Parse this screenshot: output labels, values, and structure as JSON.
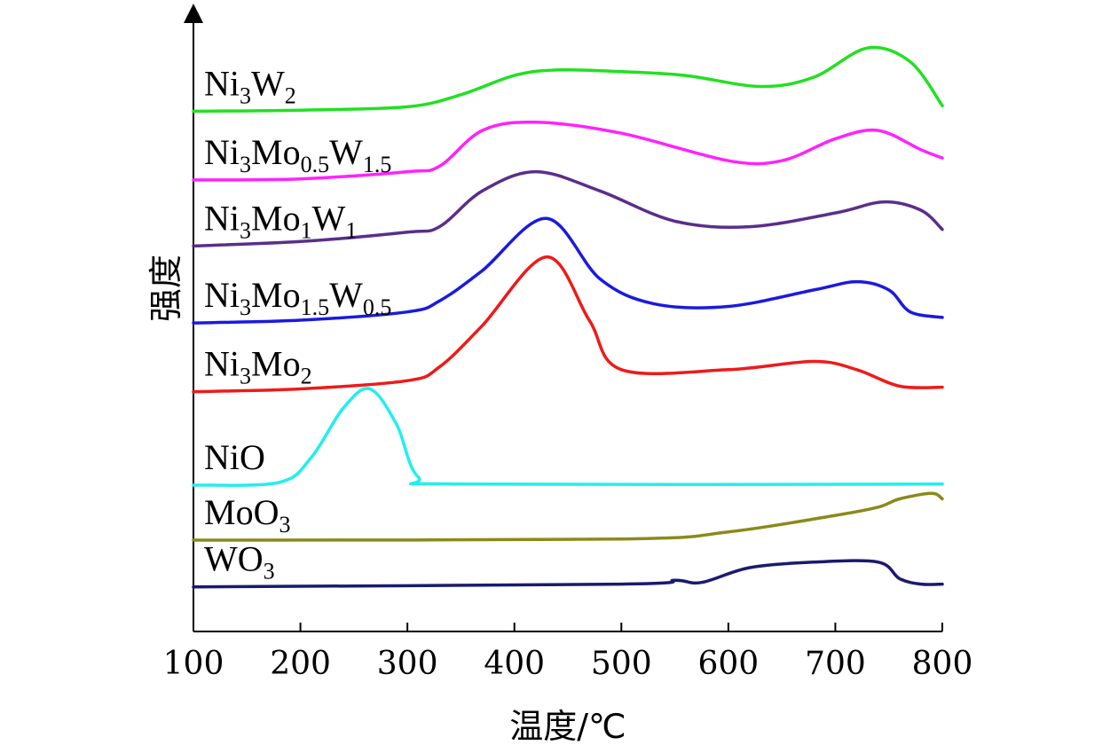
{
  "chart_data": {
    "type": "line",
    "xlabel": "温度/℃",
    "ylabel": "强度",
    "xlim": [
      100,
      800
    ],
    "xticks": [
      100,
      200,
      300,
      400,
      500,
      600,
      700,
      800
    ],
    "yticks_shown": false,
    "legend": "inline labels beside each curve",
    "series": [
      {
        "name": "Ni3W2",
        "label_parts": [
          [
            "Ni",
            ""
          ],
          [
            "3",
            "sub"
          ],
          [
            "W",
            ""
          ],
          [
            "2",
            "sub"
          ]
        ],
        "color": "#22e022",
        "offset": 7.8,
        "points": [
          [
            100,
            0
          ],
          [
            200,
            0.02
          ],
          [
            300,
            0.08
          ],
          [
            350,
            0.3
          ],
          [
            400,
            0.65
          ],
          [
            440,
            0.75
          ],
          [
            500,
            0.72
          ],
          [
            560,
            0.65
          ],
          [
            630,
            0.45
          ],
          [
            680,
            0.62
          ],
          [
            730,
            1.15
          ],
          [
            770,
            0.9
          ],
          [
            800,
            0.1
          ]
        ]
      },
      {
        "name": "Ni3Mo0.5W1.5",
        "label_parts": [
          [
            "Ni",
            ""
          ],
          [
            "3",
            "sub"
          ],
          [
            "Mo",
            ""
          ],
          [
            "0.5",
            "sub"
          ],
          [
            "W",
            ""
          ],
          [
            "1.5",
            "sub"
          ]
        ],
        "color": "#ff22ff",
        "offset": 6.55,
        "points": [
          [
            100,
            0
          ],
          [
            200,
            0.02
          ],
          [
            300,
            0.15
          ],
          [
            330,
            0.25
          ],
          [
            370,
            0.9
          ],
          [
            420,
            1.05
          ],
          [
            500,
            0.85
          ],
          [
            600,
            0.35
          ],
          [
            650,
            0.35
          ],
          [
            700,
            0.75
          ],
          [
            740,
            0.9
          ],
          [
            780,
            0.55
          ],
          [
            800,
            0.4
          ]
        ]
      },
      {
        "name": "Ni3Mo1W1",
        "label_parts": [
          [
            "Ni",
            ""
          ],
          [
            "3",
            "sub"
          ],
          [
            "Mo",
            ""
          ],
          [
            "1",
            "sub"
          ],
          [
            "W",
            ""
          ],
          [
            "1",
            "sub"
          ]
        ],
        "color": "#5a2e8a",
        "offset": 5.35,
        "points": [
          [
            100,
            0
          ],
          [
            200,
            0.08
          ],
          [
            300,
            0.25
          ],
          [
            330,
            0.35
          ],
          [
            370,
            1.0
          ],
          [
            420,
            1.35
          ],
          [
            480,
            1.0
          ],
          [
            550,
            0.45
          ],
          [
            620,
            0.35
          ],
          [
            700,
            0.6
          ],
          [
            745,
            0.8
          ],
          [
            780,
            0.65
          ],
          [
            800,
            0.3
          ]
        ]
      },
      {
        "name": "Ni3Mo1.5W0.5",
        "label_parts": [
          [
            "Ni",
            ""
          ],
          [
            "3",
            "sub"
          ],
          [
            "Mo",
            ""
          ],
          [
            "1.5",
            "sub"
          ],
          [
            "W",
            ""
          ],
          [
            "0.5",
            "sub"
          ]
        ],
        "color": "#1a1adf",
        "offset": 3.95,
        "points": [
          [
            100,
            0
          ],
          [
            200,
            0.05
          ],
          [
            300,
            0.2
          ],
          [
            330,
            0.4
          ],
          [
            370,
            0.95
          ],
          [
            430,
            1.9
          ],
          [
            480,
            0.8
          ],
          [
            530,
            0.35
          ],
          [
            600,
            0.3
          ],
          [
            680,
            0.6
          ],
          [
            720,
            0.75
          ],
          [
            750,
            0.6
          ],
          [
            770,
            0.2
          ],
          [
            800,
            0.1
          ]
        ]
      },
      {
        "name": "Ni3Mo2",
        "label_parts": [
          [
            "Ni",
            ""
          ],
          [
            "3",
            "sub"
          ],
          [
            "Mo",
            ""
          ],
          [
            "2",
            "sub"
          ]
        ],
        "color": "#ee1a1a",
        "offset": 2.7,
        "points": [
          [
            100,
            0
          ],
          [
            200,
            0.05
          ],
          [
            300,
            0.2
          ],
          [
            330,
            0.45
          ],
          [
            370,
            1.2
          ],
          [
            430,
            2.45
          ],
          [
            470,
            1.3
          ],
          [
            500,
            0.4
          ],
          [
            600,
            0.4
          ],
          [
            680,
            0.55
          ],
          [
            720,
            0.4
          ],
          [
            760,
            0.1
          ],
          [
            800,
            0.08
          ]
        ]
      },
      {
        "name": "NiO",
        "label_parts": [
          [
            "NiO",
            ""
          ]
        ],
        "color": "#22eeee",
        "offset": 1.0,
        "points": [
          [
            100,
            0
          ],
          [
            180,
            0.05
          ],
          [
            210,
            0.5
          ],
          [
            240,
            1.4
          ],
          [
            265,
            1.75
          ],
          [
            290,
            1.1
          ],
          [
            310,
            0.15
          ],
          [
            350,
            0.02
          ],
          [
            800,
            0.02
          ]
        ]
      },
      {
        "name": "MoO3",
        "label_parts": [
          [
            "MoO",
            ""
          ],
          [
            "3",
            "sub"
          ]
        ],
        "color": "#8a8a1a",
        "offset": 0.0,
        "points": [
          [
            100,
            0
          ],
          [
            500,
            0.02
          ],
          [
            600,
            0.15
          ],
          [
            700,
            0.45
          ],
          [
            740,
            0.6
          ],
          [
            760,
            0.75
          ],
          [
            790,
            0.85
          ],
          [
            800,
            0.75
          ]
        ]
      },
      {
        "name": "WO3",
        "label_parts": [
          [
            "WO",
            ""
          ],
          [
            "3",
            "sub"
          ]
        ],
        "color": "#1a1a6e",
        "offset": -0.85,
        "points": [
          [
            100,
            0
          ],
          [
            500,
            0.05
          ],
          [
            550,
            0.12
          ],
          [
            575,
            0.08
          ],
          [
            620,
            0.35
          ],
          [
            680,
            0.45
          ],
          [
            740,
            0.45
          ],
          [
            760,
            0.15
          ],
          [
            780,
            0.05
          ],
          [
            800,
            0.05
          ]
        ]
      }
    ]
  }
}
